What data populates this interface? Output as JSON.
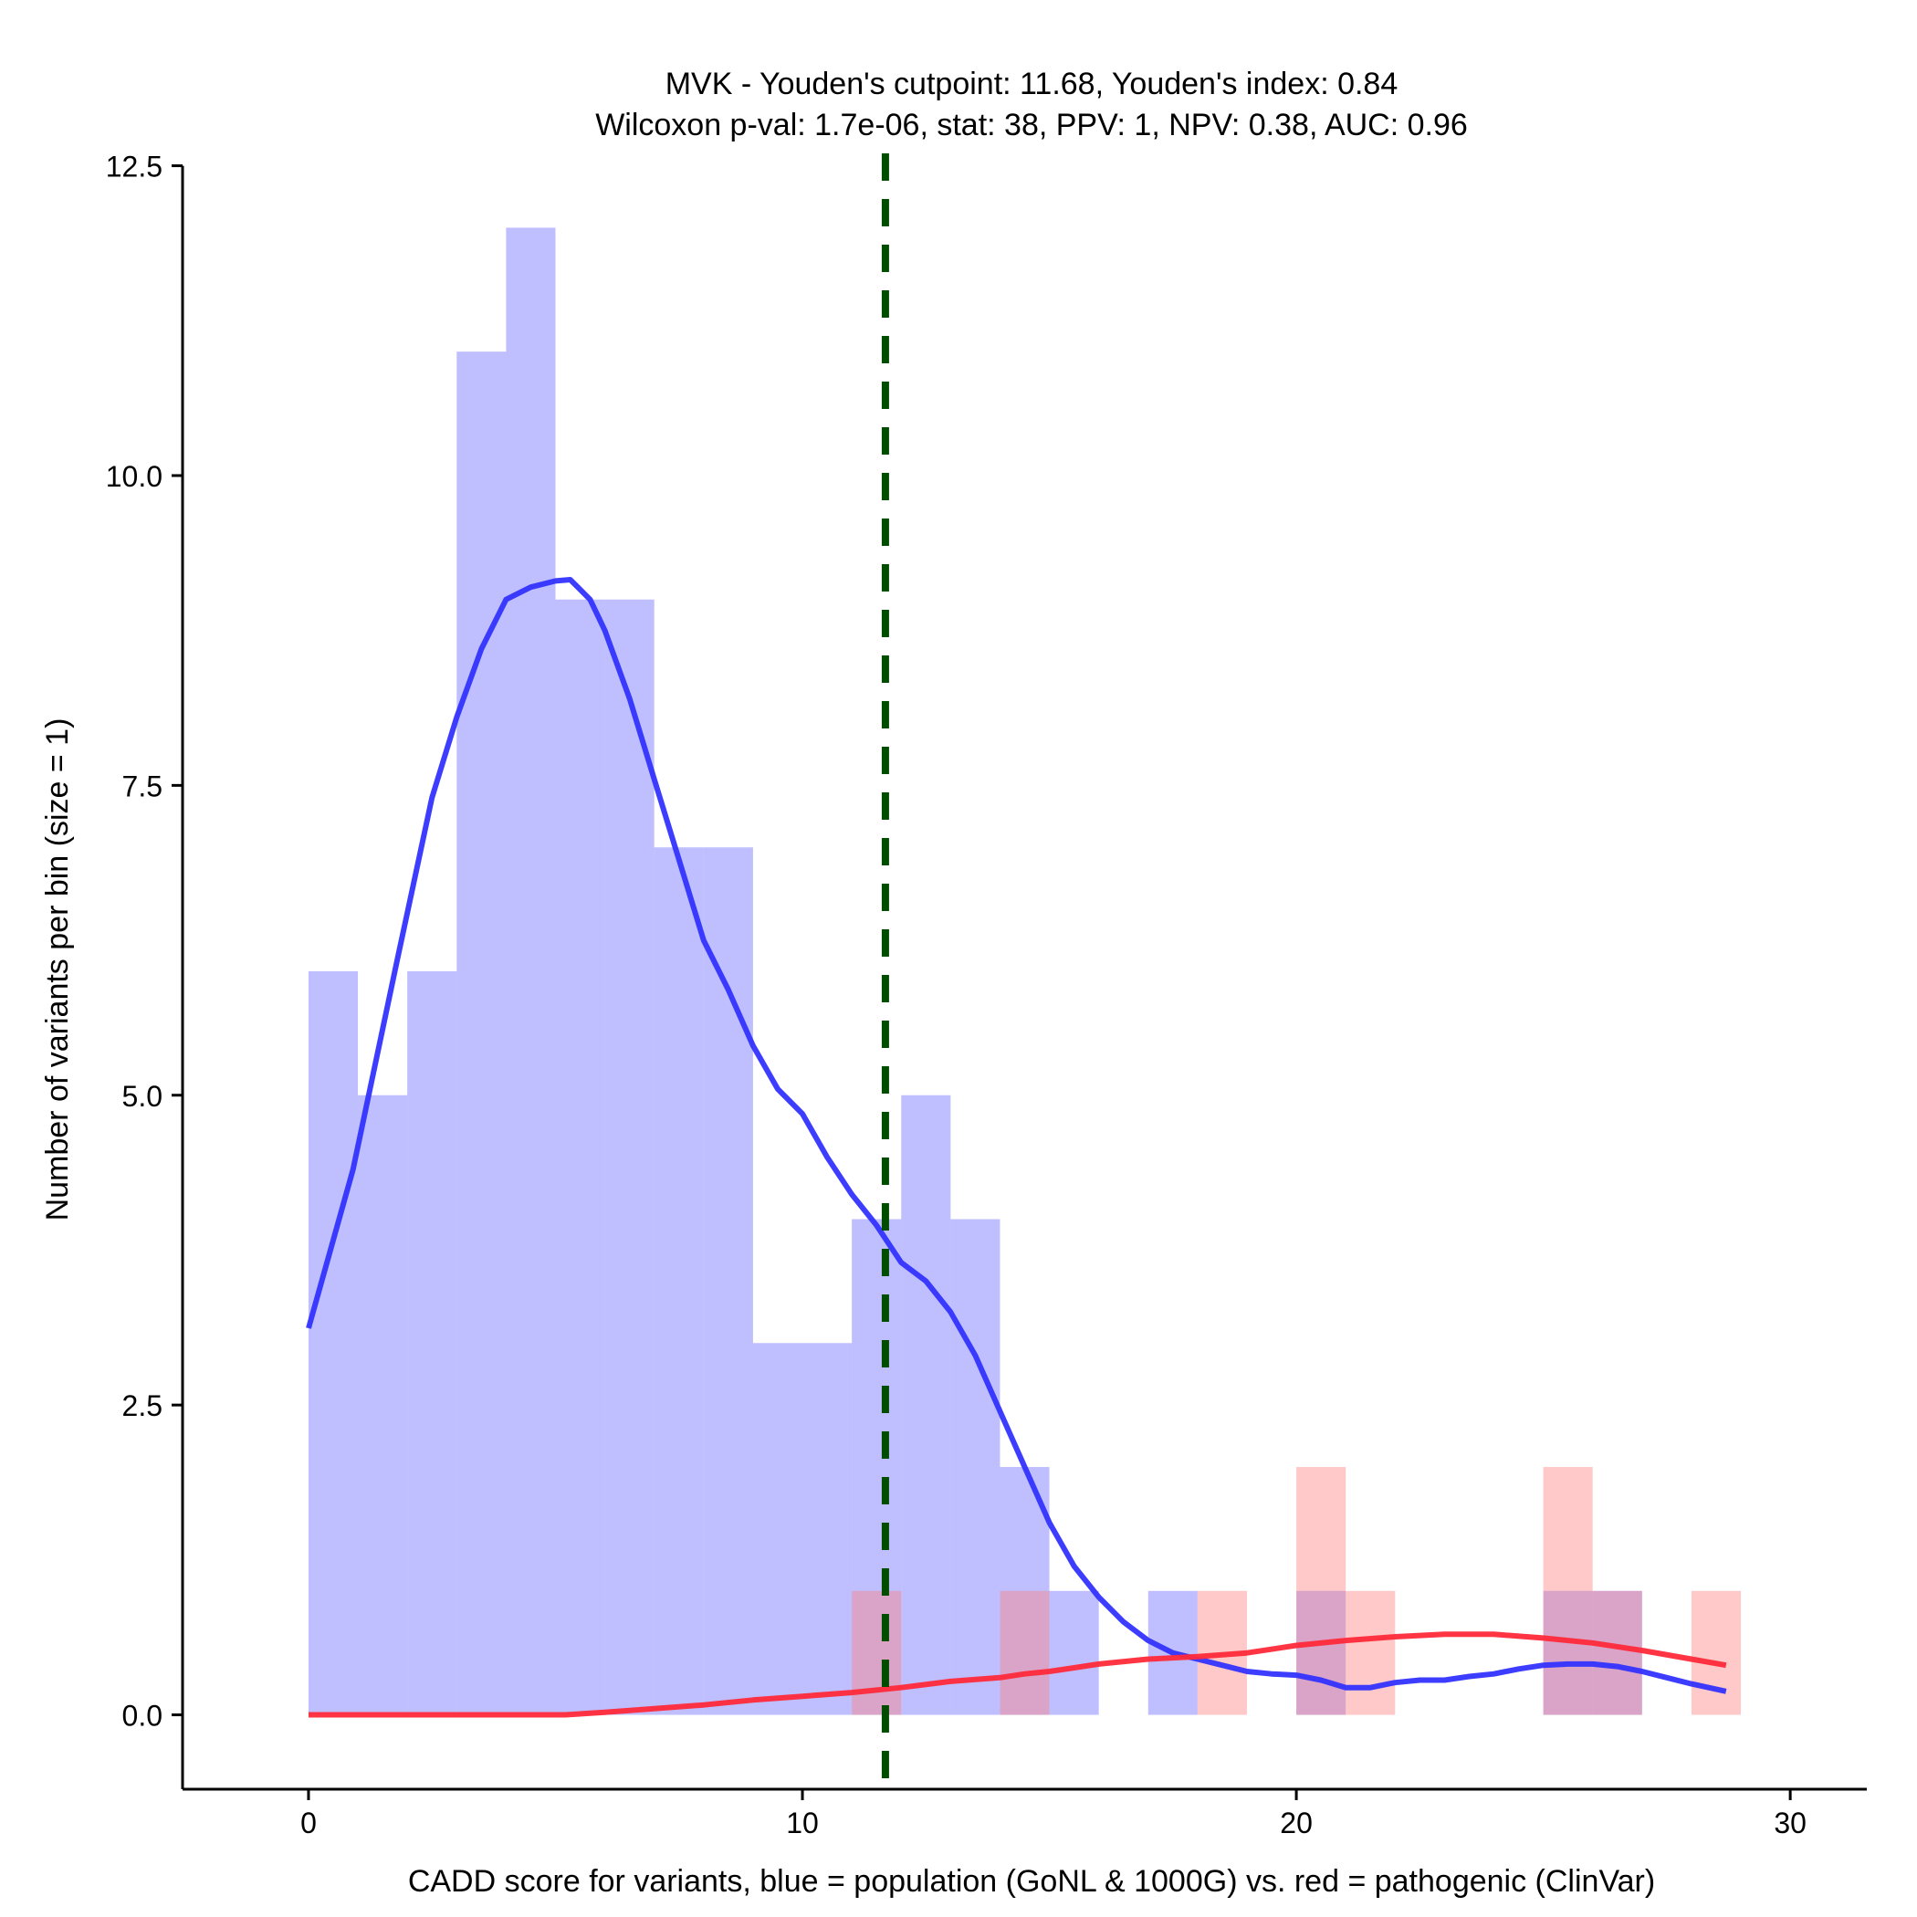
{
  "chart_data": {
    "type": "histogram",
    "title_line1": "MVK - Youden's cutpoint: 11.68, Youden's index: 0.84",
    "title_line2": "Wilcoxon p-val: 1.7e-06, stat: 38, PPV: 1, NPV: 0.38, AUC: 0.96",
    "xlabel": "CADD score for variants, blue = population (GoNL & 1000G) vs. red = pathogenic (ClinVar)",
    "ylabel": "Number of variants per bin (size = 1)",
    "xlim": [
      -2.55,
      31.55
    ],
    "ylim": [
      -0.6,
      12.6
    ],
    "x_ticks": [
      0,
      10,
      20,
      30
    ],
    "x_tick_labels": [
      "0",
      "10",
      "20",
      "30"
    ],
    "y_ticks": [
      0,
      2.5,
      5,
      7.5,
      10,
      12.5
    ],
    "y_tick_labels": [
      "0.0",
      "2.5",
      "5.0",
      "7.5",
      "10.0",
      "12.5"
    ],
    "bin_size": 1,
    "cutpoint": 11.68,
    "colors": {
      "population": "#6666ff",
      "pathogenic": "#ff7f7f",
      "population_line": "#3333ff",
      "pathogenic_line": "#ff2a3a",
      "cutpoint_line": "#004d00"
    },
    "series": [
      {
        "name": "population",
        "bin_starts": [
          0,
          1,
          2,
          3,
          4,
          5,
          6,
          7,
          8,
          9,
          10,
          11,
          12,
          13,
          14,
          15,
          17,
          20,
          25,
          26
        ],
        "values": [
          6,
          5,
          6,
          11,
          12,
          9,
          9,
          7,
          7,
          3,
          3,
          4,
          5,
          4,
          2,
          1,
          1,
          1,
          1,
          1
        ]
      },
      {
        "name": "pathogenic",
        "bin_starts": [
          11,
          14,
          18,
          20,
          21,
          25,
          26,
          28
        ],
        "values": [
          1,
          1,
          1,
          2,
          1,
          2,
          1,
          1
        ]
      }
    ],
    "density_population": {
      "x": [
        0,
        0.9,
        1.8,
        2.5,
        3,
        3.5,
        4,
        4.5,
        5,
        5.3,
        5.7,
        6,
        6.5,
        7,
        7.5,
        8,
        8.5,
        9,
        9.5,
        10,
        10.5,
        11,
        11.5,
        12,
        12.5,
        13,
        13.5,
        14,
        14.5,
        15,
        15.5,
        16,
        16.5,
        17,
        17.5,
        18,
        18.5,
        19,
        19.5,
        20,
        20.5,
        21,
        21.5,
        22,
        22.5,
        23,
        23.5,
        24,
        24.5,
        25,
        25.5,
        26,
        26.5,
        27,
        27.5,
        28,
        28.7
      ],
      "y": [
        3.12,
        4.4,
        6.1,
        7.4,
        8.05,
        8.6,
        9.0,
        9.1,
        9.15,
        9.16,
        9.0,
        8.75,
        8.2,
        7.55,
        6.9,
        6.25,
        5.85,
        5.4,
        5.05,
        4.85,
        4.5,
        4.2,
        3.95,
        3.65,
        3.5,
        3.25,
        2.9,
        2.45,
        2.0,
        1.55,
        1.2,
        0.95,
        0.75,
        0.6,
        0.5,
        0.45,
        0.4,
        0.35,
        0.33,
        0.32,
        0.28,
        0.22,
        0.22,
        0.26,
        0.28,
        0.28,
        0.31,
        0.33,
        0.37,
        0.4,
        0.41,
        0.41,
        0.39,
        0.35,
        0.3,
        0.25,
        0.19
      ]
    },
    "density_pathogenic": {
      "x": [
        0,
        2,
        4,
        5.2,
        6,
        7,
        8,
        9,
        10,
        11,
        12,
        13,
        14,
        14.5,
        15,
        15.5,
        16,
        17,
        18,
        19,
        20,
        21,
        22,
        23,
        24,
        25,
        26,
        27,
        28,
        28.7
      ],
      "y": [
        0,
        0,
        0,
        0,
        0.02,
        0.05,
        0.08,
        0.12,
        0.15,
        0.18,
        0.22,
        0.27,
        0.3,
        0.33,
        0.35,
        0.38,
        0.41,
        0.45,
        0.47,
        0.5,
        0.56,
        0.6,
        0.63,
        0.65,
        0.65,
        0.62,
        0.58,
        0.52,
        0.45,
        0.4
      ]
    }
  }
}
